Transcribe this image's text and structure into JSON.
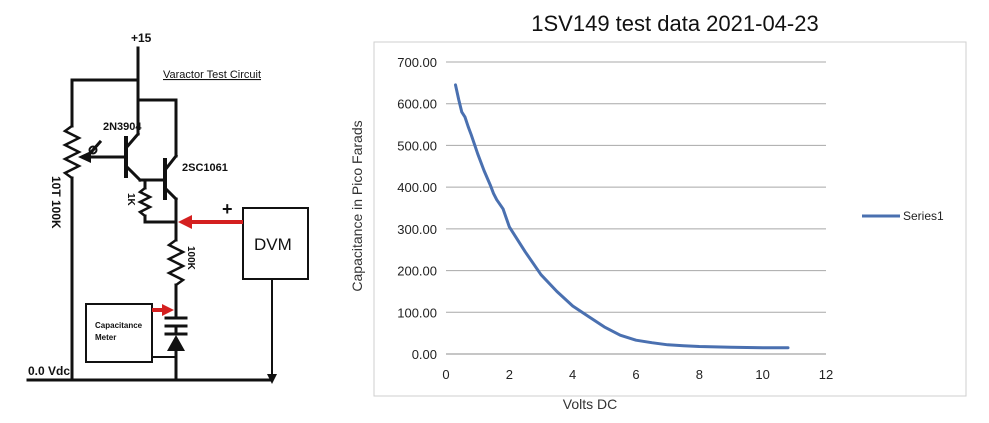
{
  "circuit": {
    "supply_label": "+15",
    "title": "Varactor Test Circuit",
    "pot_label": "10T 100K",
    "transistor1_label": "2N3904",
    "transistor2_label": "2SC1061",
    "resistor1_label": "1K",
    "resistor2_label": "100K",
    "meter_label_line1": "Capacitance",
    "meter_label_line2": "Meter",
    "dvm_label": "DVM",
    "plus_sign": "+",
    "ground_label": "0.0 Vdc",
    "colors": {
      "wire": "#111111",
      "arrow": "#d42020"
    }
  },
  "chart_data": {
    "type": "line",
    "title": "1SV149 test data 2021-04-23",
    "xlabel": "Volts DC",
    "ylabel": "Capacitance in Pico Farads",
    "xlim": [
      0,
      12
    ],
    "ylim": [
      0,
      700
    ],
    "xticks": [
      "0",
      "2",
      "4",
      "6",
      "8",
      "10",
      "12"
    ],
    "yticks": [
      "0.00",
      "100.00",
      "200.00",
      "300.00",
      "400.00",
      "500.00",
      "600.00",
      "700.00"
    ],
    "grid": "horizontal",
    "legend_position": "right",
    "series": [
      {
        "name": "Series1",
        "color": "#4a70b0",
        "x": [
          0.3,
          0.4,
          0.5,
          0.6,
          0.7,
          0.8,
          1.0,
          1.2,
          1.4,
          1.5,
          1.6,
          1.8,
          2.0,
          2.5,
          3.0,
          3.5,
          4.0,
          4.5,
          5.0,
          5.5,
          6.0,
          6.5,
          7.0,
          7.5,
          8.0,
          9.0,
          10.0,
          10.8
        ],
        "y": [
          645,
          610,
          580,
          568,
          545,
          525,
          480,
          440,
          405,
          385,
          370,
          348,
          305,
          245,
          190,
          150,
          115,
          90,
          65,
          45,
          33,
          27,
          22,
          20,
          18,
          16,
          15,
          15
        ]
      }
    ]
  }
}
